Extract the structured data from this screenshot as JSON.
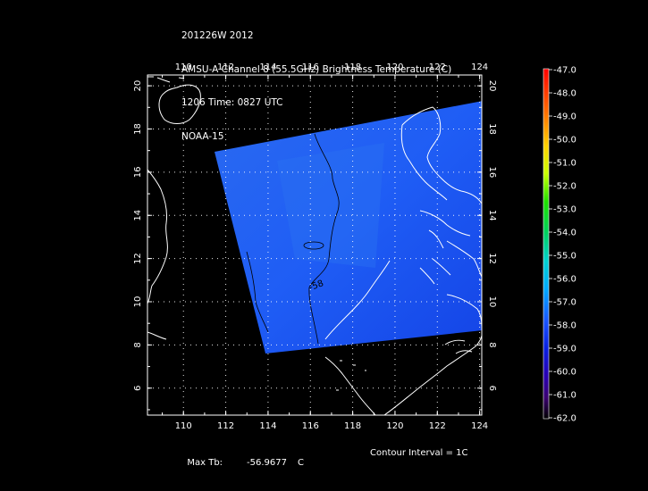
{
  "header": {
    "line1": "201226W 2012",
    "line2": "AMSU-A Channel 8 (55.5GHz) Brightness Temperature (C)",
    "line3": "1206 Time: 0827 UTC",
    "line4": "NOAA-15"
  },
  "map": {
    "lon_ticks": [
      "110",
      "112",
      "114",
      "116",
      "118",
      "120",
      "122",
      "124"
    ],
    "lat_ticks": [
      "6",
      "8",
      "10",
      "12",
      "14",
      "16",
      "18",
      "20"
    ],
    "contour_label": "-58",
    "colors": {
      "background": "#000000",
      "swath": "#1a55ff",
      "coast": "#ffffff",
      "contour": "#000000"
    }
  },
  "colorbar": {
    "labels": [
      "-47.0",
      "-48.0",
      "-49.0",
      "-50.0",
      "-51.0",
      "-52.0",
      "-53.0",
      "-54.0",
      "-55.0",
      "-56.0",
      "-57.0",
      "-58.0",
      "-59.0",
      "-60.0",
      "-61.0",
      "-62.0"
    ]
  },
  "footer": {
    "max_label": "Max Tb:",
    "max_value": "-56.9677",
    "max_unit": "C",
    "contour_interval": "Contour Interval = 1C"
  }
}
